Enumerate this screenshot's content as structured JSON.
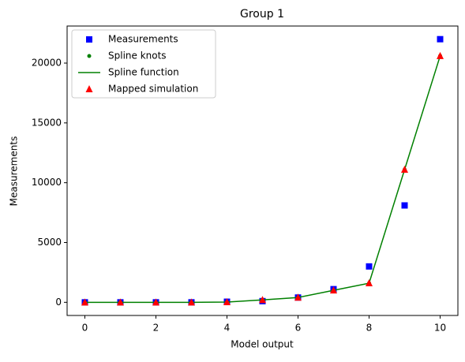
{
  "chart_data": {
    "type": "line",
    "title": "Group 1",
    "x_label": "Model output",
    "y_label": "Measurements",
    "x": [
      0,
      1,
      2,
      3,
      4,
      5,
      6,
      7,
      8,
      9,
      10
    ],
    "series": [
      {
        "name": "Measurements",
        "color": "#0000ff",
        "marker": "square",
        "line": false,
        "values": [
          0,
          0,
          0,
          0,
          50,
          100,
          400,
          1100,
          3000,
          8100,
          22000
        ]
      },
      {
        "name": "Spline knots",
        "color": "#008000",
        "marker": "dot",
        "line": false,
        "values": [
          0,
          0,
          0,
          0,
          20,
          200,
          400,
          1000,
          1600,
          11100,
          20600
        ]
      },
      {
        "name": "Spline function",
        "color": "#008000",
        "marker": "none",
        "line": true,
        "values": [
          0,
          0,
          0,
          0,
          20,
          200,
          400,
          1000,
          1600,
          11100,
          20600
        ]
      },
      {
        "name": "Mapped simulation",
        "color": "#ff0000",
        "marker": "triangle",
        "line": false,
        "values": [
          0,
          0,
          0,
          0,
          20,
          200,
          400,
          1000,
          1600,
          11100,
          20600
        ]
      }
    ],
    "xlim": [
      -0.5,
      10.5
    ],
    "xticks": [
      0,
      2,
      4,
      6,
      8,
      10
    ],
    "ylim": [
      -1100,
      23100
    ],
    "yticks": [
      0,
      5000,
      10000,
      15000,
      20000
    ],
    "grid": false,
    "legend": "upper-left"
  }
}
